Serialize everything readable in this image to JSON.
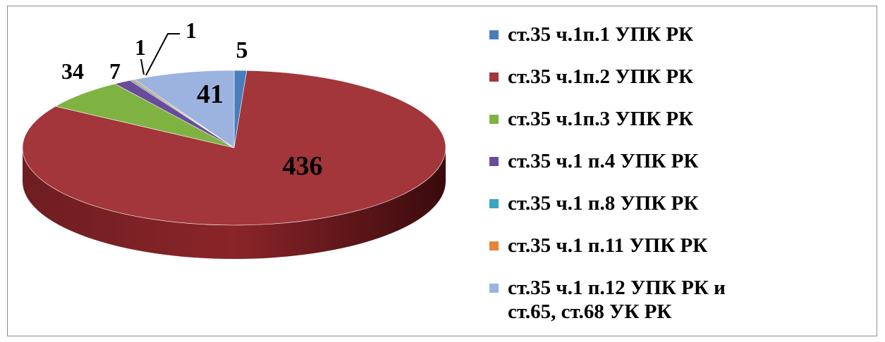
{
  "chart_data": {
    "type": "pie",
    "title": "",
    "labels": [
      "ст.35 ч.1п.1 УПК РК",
      "ст.35 ч.1п.2 УПК РК",
      "ст.35 ч.1п.3 УПК РК",
      "ст.35 ч.1 п.4 УПК РК",
      "ст.35 ч.1 п.8 УПК РК",
      "ст.35 ч.1 п.11 УПК РК",
      "ст.35 ч.1 п.12 УПК РК и ст.65, ст.68 УК РК"
    ],
    "values": [
      5,
      436,
      34,
      7,
      1,
      1,
      41
    ],
    "value_labels": [
      "5",
      "436",
      "34",
      "7",
      "1",
      "1",
      "41"
    ],
    "colors": [
      "#4a7ebb",
      "#a2363b",
      "#7eb341",
      "#6a4b9a",
      "#3aa5be",
      "#e8833a",
      "#9bb3de"
    ],
    "legend": {
      "position": "right",
      "entries": [
        {
          "lines": [
            "ст.35 ч.1п.1 УПК РК"
          ],
          "color": "#4a7ebb"
        },
        {
          "lines": [
            "ст.35 ч.1п.2 УПК РК"
          ],
          "color": "#a2363b"
        },
        {
          "lines": [
            "ст.35 ч.1п.3 УПК РК"
          ],
          "color": "#7eb341"
        },
        {
          "lines": [
            "ст.35 ч.1 п.4 УПК РК"
          ],
          "color": "#6a4b9a"
        },
        {
          "lines": [
            "ст.35 ч.1 п.8 УПК РК"
          ],
          "color": "#3aa5be"
        },
        {
          "lines": [
            "ст.35 ч.1 п.11 УПК РК"
          ],
          "color": "#e8833a"
        },
        {
          "lines": [
            "ст.35 ч.1 п.12 УПК РК и",
            "ст.65, ст.68 УК РК"
          ],
          "color": "#9bb3de"
        }
      ]
    },
    "style": "3d-pie"
  }
}
